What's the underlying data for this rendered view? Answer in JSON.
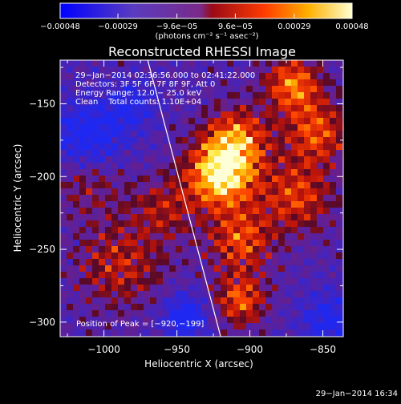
{
  "chart_data": {
    "type": "heatmap",
    "title": "Reconstructed RHESSI Image",
    "xlabel": "Heliocentric X (arcsec)",
    "ylabel": "Heliocentric Y (arcsec)",
    "xlim": [
      -1030,
      -836
    ],
    "ylim": [
      -310,
      -120
    ],
    "x_ticks": [
      -1000,
      -950,
      -900,
      -850
    ],
    "y_ticks": [
      -150,
      -200,
      -250,
      -300
    ],
    "x_tick_labels": [
      "−1000",
      "−950",
      "−900",
      "−850"
    ],
    "y_tick_labels": [
      "−150",
      "−200",
      "−250",
      "−300"
    ],
    "colorbar": {
      "range": [
        -0.00048,
        0.00048
      ],
      "tick_labels": [
        "−0.00048",
        "−0.00029",
        "−9.6e−05",
        "9.6e−05",
        "0.00029",
        "0.00048"
      ],
      "tick_values": [
        -0.00048,
        -0.00029,
        -9.6e-05,
        9.6e-05,
        0.00029,
        0.00048
      ],
      "units_label": "(photons cm⁻² s⁻¹ asec⁻²)"
    },
    "peak": [
      -920,
      -199
    ],
    "limb_line": [
      [
        -970,
        -120
      ],
      [
        -920,
        -310
      ]
    ],
    "info_lines": [
      "29−Jan−2014 02:36:56.000 to 02:41:22.000",
      "Detectors: 3F 5F 6F 7F 8F 9F, Att 0",
      "Energy Range: 12.0 − 25.0 keV",
      "Clean    Total counts: 1.10E+04"
    ],
    "peak_label": "Position of Peak = [−920,−199]"
  },
  "footer": {
    "timestamp": "29−Jan−2014 16:34"
  },
  "colors": {
    "background": "#000000",
    "text": "#ffffff",
    "limb": "#ffffff"
  }
}
